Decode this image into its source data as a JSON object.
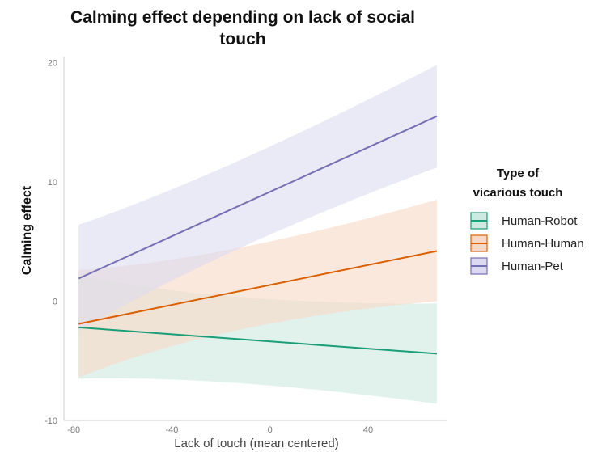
{
  "chart_data": {
    "type": "line",
    "title_lines": [
      "Calming effect depending on lack of social",
      "touch"
    ],
    "xlabel": "Lack of touch (mean centered)",
    "ylabel": "Calming effect",
    "xlim": [
      -84,
      72
    ],
    "ylim": [
      -10,
      20.5
    ],
    "x_ticks": [
      -80,
      -40,
      0,
      40
    ],
    "y_ticks": [
      -10,
      0,
      10,
      20
    ],
    "grid": false,
    "legend": {
      "title_lines": [
        "Type of",
        "vicarious touch"
      ],
      "placement": "right"
    },
    "series": [
      {
        "name": "Human-Robot",
        "color": "#1b9e77",
        "fill": "#cdeae1",
        "x": [
          -78,
          68
        ],
        "y": [
          -2.2,
          -4.4
        ],
        "band": {
          "x": [
            -78,
            -20,
            68
          ],
          "lower": [
            -6.5,
            -6.2,
            -8.6
          ],
          "upper": [
            2.2,
            -0.3,
            -0.2
          ]
        }
      },
      {
        "name": "Human-Human",
        "color": "#d95f02",
        "fill": "#f8d8c4",
        "x": [
          -78,
          68
        ],
        "y": [
          -1.9,
          4.2
        ],
        "band": {
          "x": [
            -78,
            -20,
            68
          ],
          "lower": [
            -6.4,
            -1.6,
            0.0
          ],
          "upper": [
            2.6,
            3.4,
            8.5
          ]
        }
      },
      {
        "name": "Human-Pet",
        "color": "#7570b3",
        "fill": "#dcdaf0",
        "x": [
          -78,
          68
        ],
        "y": [
          1.9,
          15.5
        ],
        "band": {
          "x": [
            -78,
            -20,
            68
          ],
          "lower": [
            -2.5,
            4.5,
            11.2
          ],
          "upper": [
            6.4,
            10.5,
            19.8
          ]
        }
      }
    ]
  }
}
